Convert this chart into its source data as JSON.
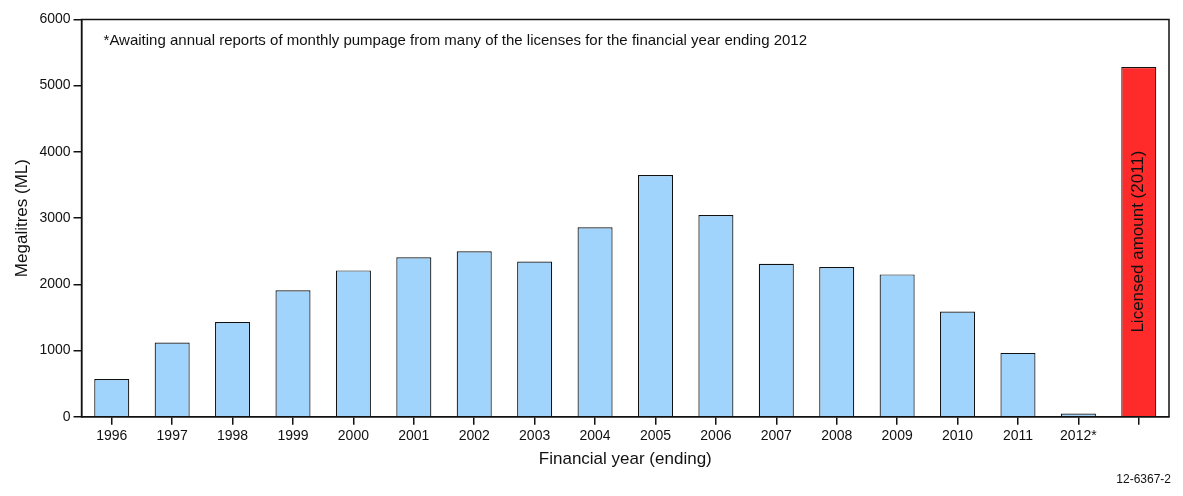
{
  "chart_data": {
    "type": "bar",
    "xlabel": "Financial year (ending)",
    "ylabel": "Megalitres (ML)",
    "categories": [
      "1996",
      "1997",
      "1998",
      "1999",
      "2000",
      "2001",
      "2002",
      "2003",
      "2004",
      "2005",
      "2006",
      "2007",
      "2008",
      "2009",
      "2010",
      "2011",
      "2012*",
      null
    ],
    "values": [
      570,
      1120,
      1430,
      1910,
      2210,
      2410,
      2500,
      2345,
      2860,
      3650,
      3045,
      2310,
      2260,
      2150,
      1590,
      965,
      50,
      5280
    ],
    "colors": [
      "#a0d4fc",
      "#a0d4fc",
      "#a0d4fc",
      "#a0d4fc",
      "#a0d4fc",
      "#a0d4fc",
      "#a0d4fc",
      "#a0d4fc",
      "#a0d4fc",
      "#a0d4fc",
      "#a0d4fc",
      "#a0d4fc",
      "#a0d4fc",
      "#a0d4fc",
      "#a0d4fc",
      "#a0d4fc",
      "#a0d4fc",
      "#ff2a2a"
    ],
    "ylim": [
      0,
      6000
    ],
    "yticks": [
      0,
      1000,
      2000,
      3000,
      4000,
      5000,
      6000
    ],
    "grid": false,
    "legend": false,
    "annotations": [
      "*Awaiting annual reports of monthly pumpage from many of the licenses for the financial year ending 2012",
      "Licensed amount (2011)",
      "12-6367-2"
    ]
  }
}
